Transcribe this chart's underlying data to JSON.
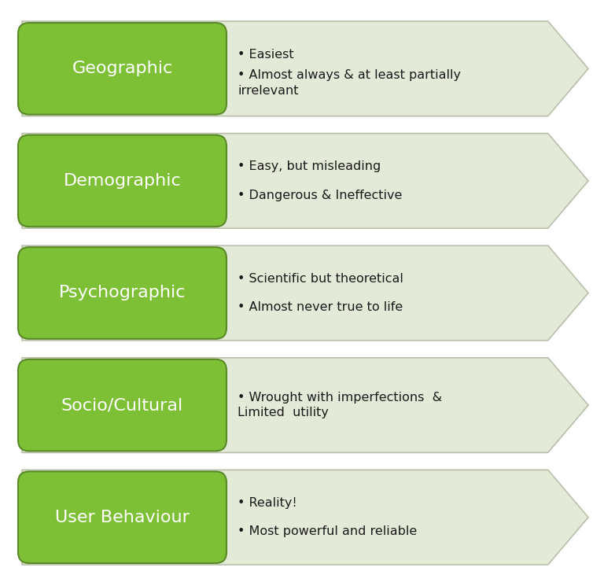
{
  "rows": [
    {
      "label": "Geographic",
      "bullets": [
        "Easiest",
        "Almost always & at least partially\nirrelevant"
      ]
    },
    {
      "label": "Demographic",
      "bullets": [
        "Easy, but misleading",
        "Dangerous & Ineffective"
      ]
    },
    {
      "label": "Psychographic",
      "bullets": [
        "Scientific but theoretical",
        "Almost never true to life"
      ]
    },
    {
      "label": "Socio/Cultural",
      "bullets": [
        "Wrought with imperfections  &\nLimited  utility"
      ]
    },
    {
      "label": "User Behaviour",
      "bullets": [
        "Reality!",
        "Most powerful and reliable"
      ]
    }
  ],
  "green_color": "#7DC035",
  "green_grad_top": "#9DD050",
  "green_dark": "#5A8A28",
  "arrow_fill": "#E4EAD8",
  "arrow_edge": "#BABFAC",
  "label_text_color": "#FFFFFF",
  "bullet_text_color": "#1A1A1A",
  "background_color": "#FFFFFF",
  "label_fontsize": 16,
  "bullet_fontsize": 11.5,
  "fig_width": 7.68,
  "fig_height": 7.45,
  "dpi": 100
}
